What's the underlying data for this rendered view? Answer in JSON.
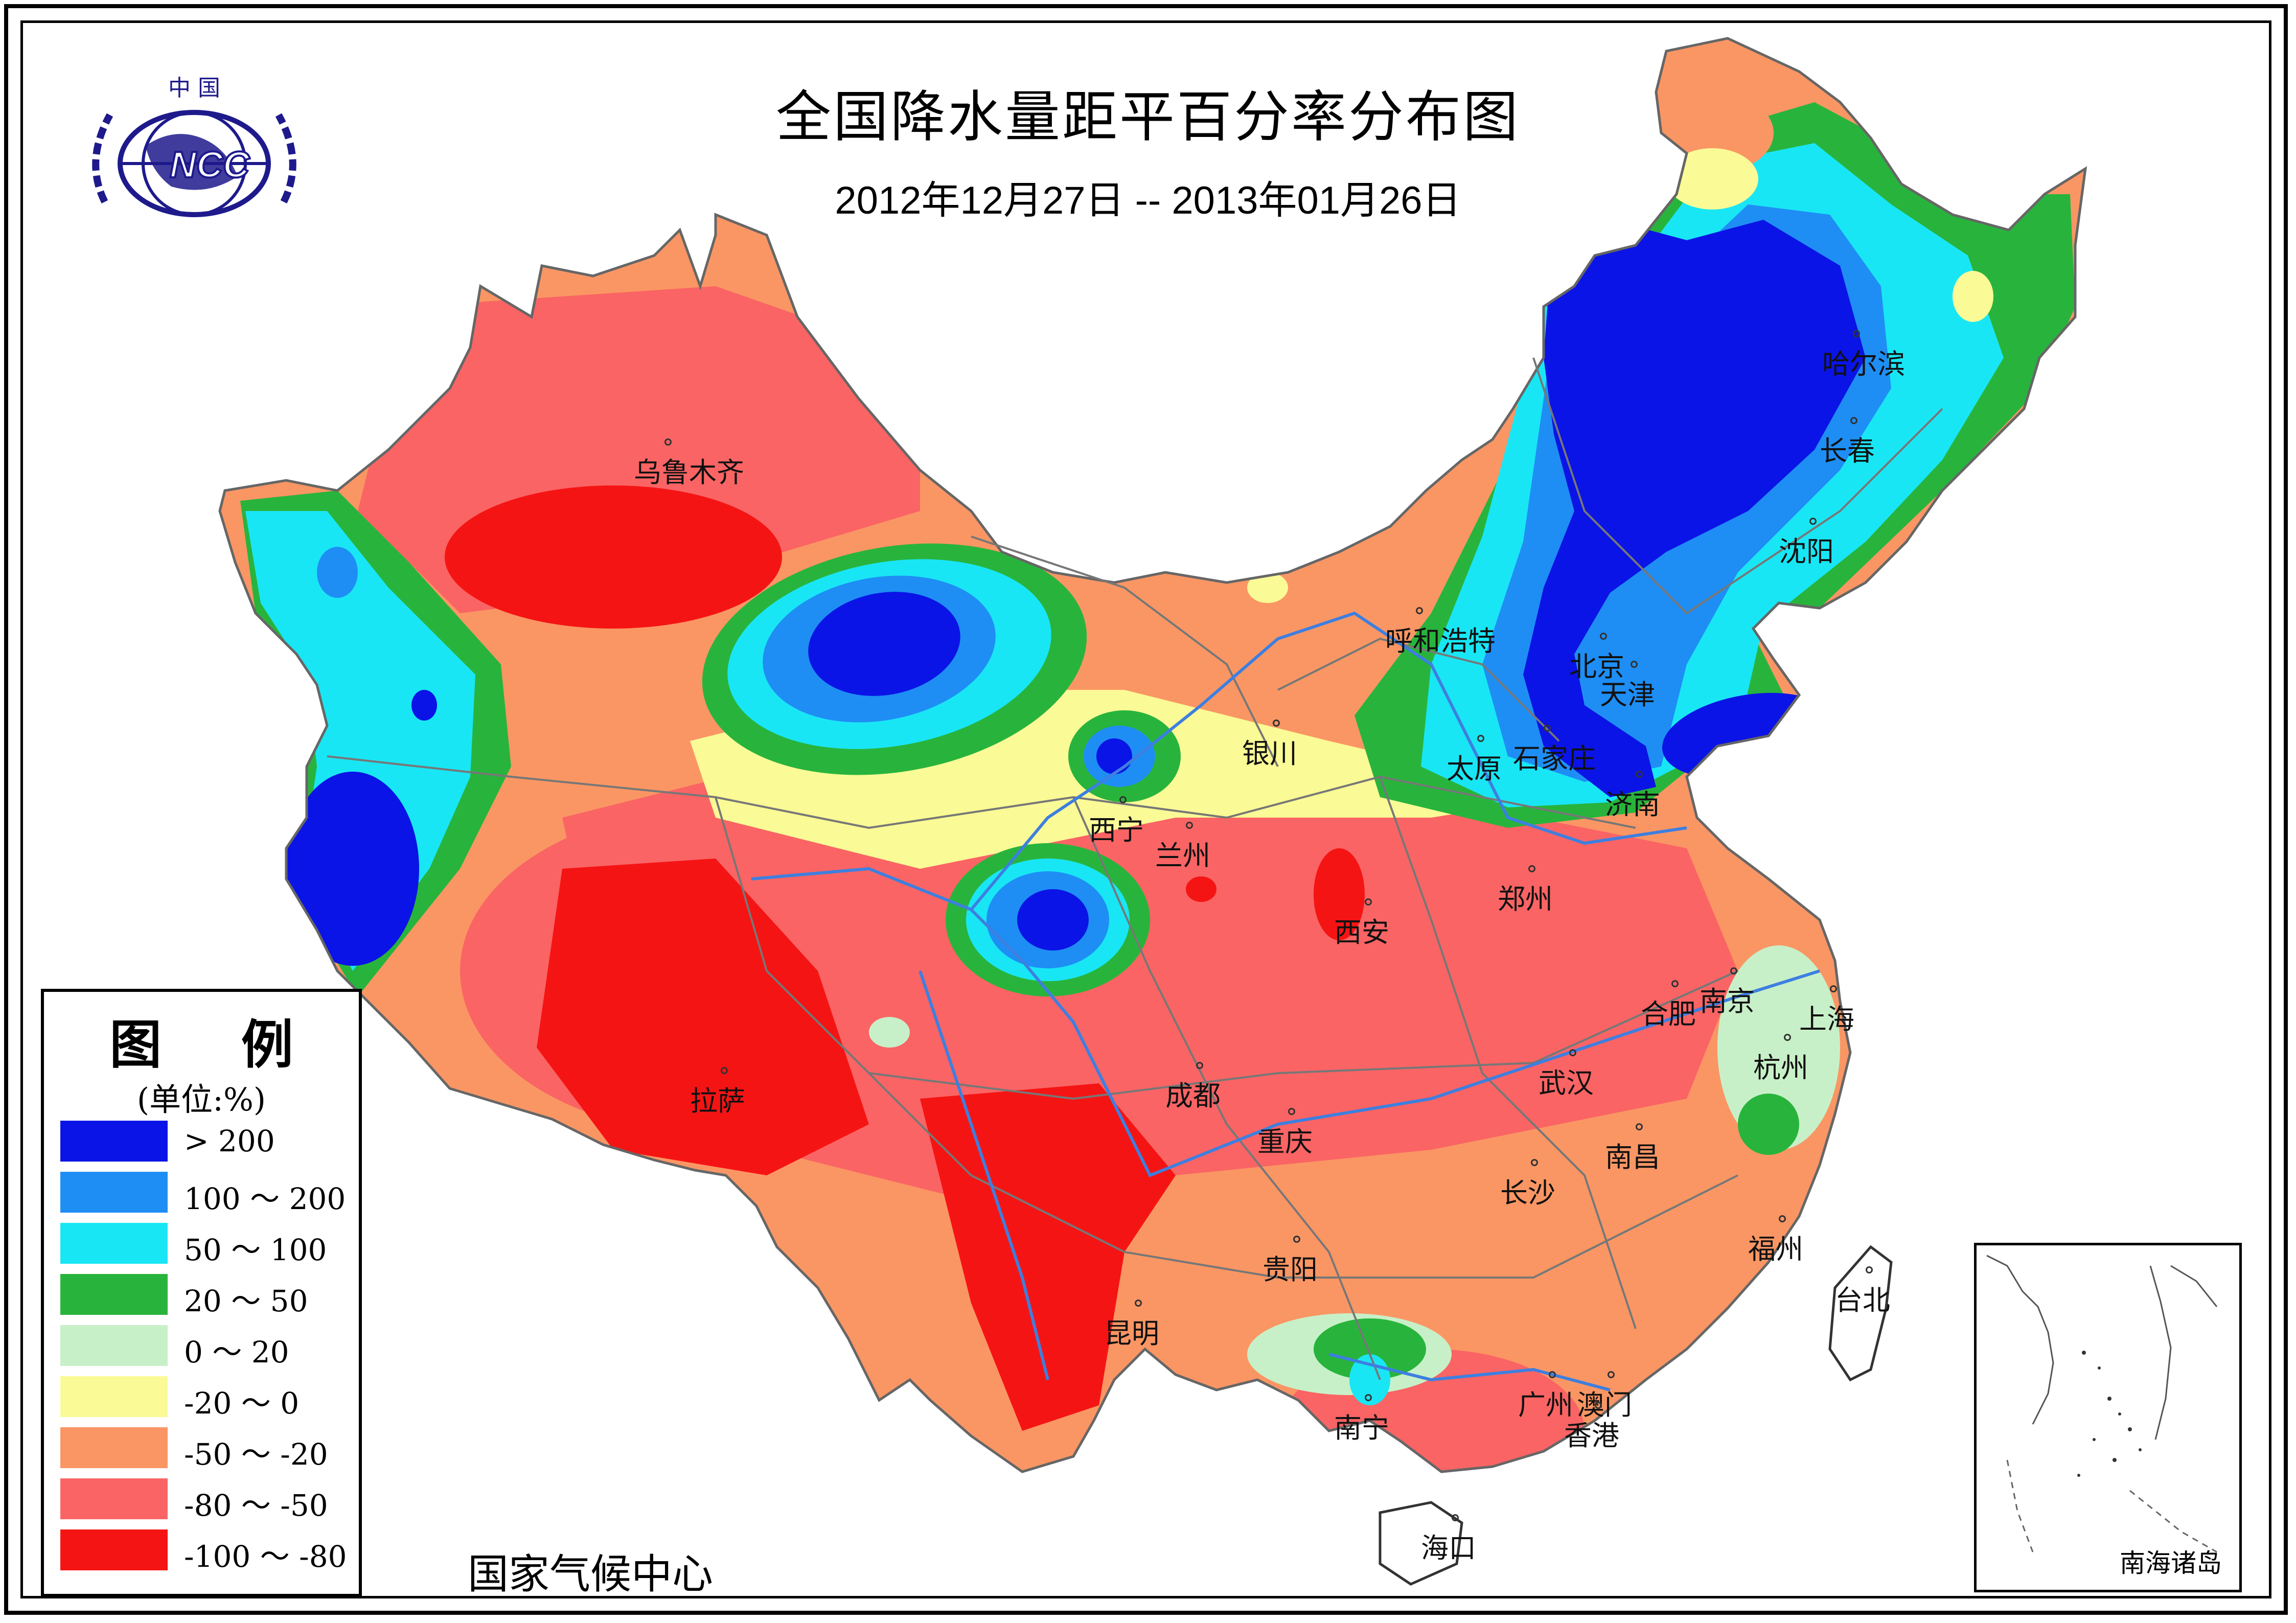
{
  "title": "全国降水量距平百分率分布图",
  "subtitle": "2012年12月27日 -- 2013年01月26日",
  "logo": {
    "top_text": "中 国",
    "badge_text": "NCC",
    "color": "#1e1a8c"
  },
  "organization": "国家气候中心",
  "legend": {
    "title": "图 例",
    "unit": "(单位:%)",
    "items": [
      {
        "label": "> 200",
        "color": "#0a14e6"
      },
      {
        "label": "100 ～ 200",
        "color": "#1e8ef5"
      },
      {
        "label": "50 ～ 100",
        "color": "#19e6f5"
      },
      {
        "label": "20 ～ 50",
        "color": "#28b43c"
      },
      {
        "label": "0 ～ 20",
        "color": "#c8f0c8"
      },
      {
        "label": "-20 ～ 0",
        "color": "#fafa96"
      },
      {
        "label": "-50 ～ -20",
        "color": "#fa9664"
      },
      {
        "label": "-80 ～ -50",
        "color": "#fa6464"
      },
      {
        "label": "-100 ～ -80",
        "color": "#f51414"
      }
    ]
  },
  "cities": [
    {
      "name": "乌鲁木齐"
    },
    {
      "name": "哈尔滨"
    },
    {
      "name": "长春"
    },
    {
      "name": "沈阳"
    },
    {
      "name": "呼和浩特"
    },
    {
      "name": "北京"
    },
    {
      "name": "天津"
    },
    {
      "name": "银川"
    },
    {
      "name": "太原"
    },
    {
      "name": "石家庄"
    },
    {
      "name": "济南"
    },
    {
      "name": "西宁"
    },
    {
      "name": "兰州"
    },
    {
      "name": "郑州"
    },
    {
      "name": "西安"
    },
    {
      "name": "合肥"
    },
    {
      "name": "南京"
    },
    {
      "name": "上海"
    },
    {
      "name": "杭州"
    },
    {
      "name": "拉萨"
    },
    {
      "name": "成都"
    },
    {
      "name": "武汉"
    },
    {
      "name": "重庆"
    },
    {
      "name": "南昌"
    },
    {
      "name": "长沙"
    },
    {
      "name": "福州"
    },
    {
      "name": "贵阳"
    },
    {
      "name": "台北"
    },
    {
      "name": "昆明"
    },
    {
      "name": "广州"
    },
    {
      "name": "澳门"
    },
    {
      "name": "香港"
    },
    {
      "name": "南宁"
    },
    {
      "name": "海口"
    }
  ],
  "inset_label": "南海诸岛"
}
